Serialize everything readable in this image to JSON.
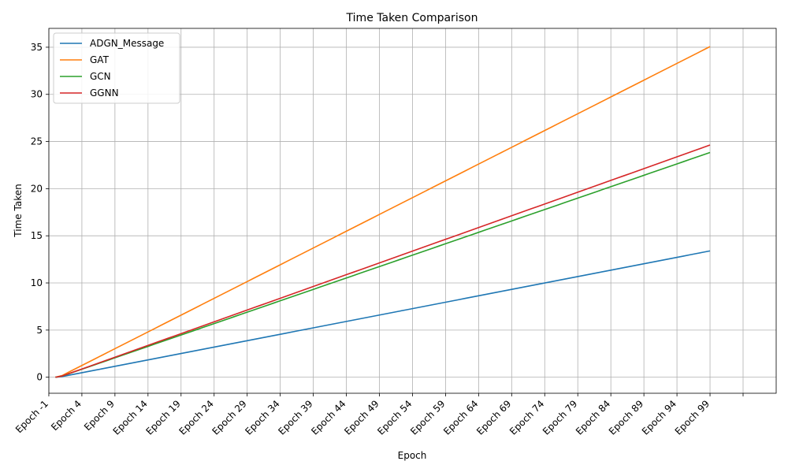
{
  "chart_data": {
    "type": "line",
    "title": "Time Taken Comparison",
    "xlabel": "Epoch",
    "ylabel": "Time Taken",
    "x_tick_labels": [
      "Epoch -1",
      "Epoch 4",
      "Epoch 9",
      "Epoch 14",
      "Epoch 19",
      "Epoch 24",
      "Epoch 29",
      "Epoch 34",
      "Epoch 39",
      "Epoch 44",
      "Epoch 49",
      "Epoch 54",
      "Epoch 59",
      "Epoch 64",
      "Epoch 69",
      "Epoch 74",
      "Epoch 79",
      "Epoch 84",
      "Epoch 89",
      "Epoch 94",
      "Epoch 99"
    ],
    "x_tick_positions": [
      -1,
      4,
      9,
      14,
      19,
      24,
      29,
      34,
      39,
      44,
      49,
      54,
      59,
      64,
      69,
      74,
      79,
      84,
      89,
      94,
      99
    ],
    "xlim": [
      -6,
      104
    ],
    "ylim": [
      -1.7,
      37
    ],
    "y_ticks": [
      0,
      5,
      10,
      15,
      20,
      25,
      30,
      35
    ],
    "grid": true,
    "legend_position": "top-left",
    "x_start": 0,
    "x_end": 99,
    "series": [
      {
        "name": "ADGN_Message",
        "color": "#1f77b4",
        "slope": 0.136,
        "offset": 0
      },
      {
        "name": "GAT",
        "color": "#ff7f0e",
        "slope": 0.356,
        "offset": 0
      },
      {
        "name": "GCN",
        "color": "#2ca02c",
        "slope": 0.242,
        "offset": 0
      },
      {
        "name": "GGNN",
        "color": "#d62728",
        "slope": 0.25,
        "offset": 0
      }
    ]
  }
}
